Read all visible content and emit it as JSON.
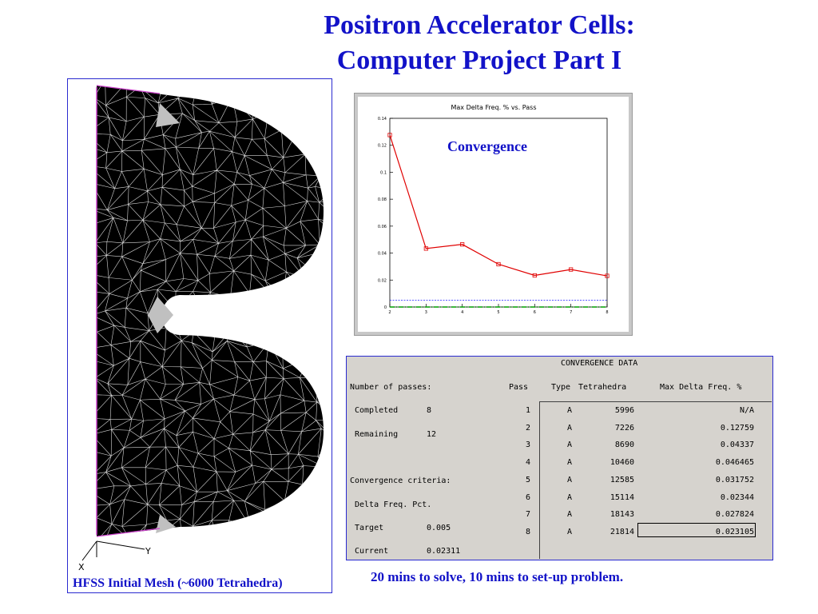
{
  "slide": {
    "title_line1": "Positron Accelerator Cells:",
    "title_line2": "Computer Project Part I",
    "mesh_caption": "HFSS Initial Mesh (~6000 Tetrahedra)",
    "footer_note": "20 mins to solve, 10 mins to set-up problem.",
    "mesh_axis_x": "X",
    "mesh_axis_y": "Y"
  },
  "chart_data": {
    "type": "line",
    "title": "Max Delta Freq. % vs. Pass",
    "annotation": "Convergence",
    "x": [
      2,
      3,
      4,
      5,
      6,
      7,
      8
    ],
    "series": [
      {
        "values": [
          0.12759,
          0.04337,
          0.046465,
          0.031752,
          0.02344,
          0.027824,
          0.023105
        ],
        "color": "#e00000"
      }
    ],
    "target_line": 0.005,
    "target_color": "#4040ff",
    "baseline_color": "#00a000",
    "xlim": [
      2,
      8
    ],
    "ylim": [
      0,
      0.14
    ],
    "x_ticks": [
      "2",
      "3",
      "4",
      "5",
      "6",
      "7",
      "8"
    ],
    "y_ticks": [
      "0",
      "0.02",
      "0.04",
      "0.06",
      "0.08",
      "0.1",
      "0.12",
      "0.14"
    ],
    "grid": false
  },
  "convergence_data": {
    "header": "CONVERGENCE DATA",
    "passes_label": "Number of passes:",
    "completed_label": "Completed",
    "completed_value": "8",
    "remaining_label": "Remaining",
    "remaining_value": "12",
    "criteria_label": "Convergence criteria:",
    "delta_label": "Delta Freq. Pct.",
    "target_label": "Target",
    "target_value": "0.005",
    "current_label": "Current",
    "current_value": "0.02311",
    "columns": [
      "Pass",
      "Type",
      "Tetrahedra",
      "Max Delta Freq. %"
    ],
    "rows": [
      [
        "1",
        "A",
        "5996",
        "N/A"
      ],
      [
        "2",
        "A",
        "7226",
        "0.12759"
      ],
      [
        "3",
        "A",
        "8690",
        "0.04337"
      ],
      [
        "4",
        "A",
        "10460",
        "0.046465"
      ],
      [
        "5",
        "A",
        "12585",
        "0.031752"
      ],
      [
        "6",
        "A",
        "15114",
        "0.02344"
      ],
      [
        "7",
        "A",
        "18143",
        "0.027824"
      ],
      [
        "8",
        "A",
        "21814",
        "0.023105"
      ]
    ]
  }
}
